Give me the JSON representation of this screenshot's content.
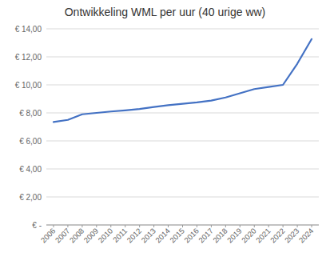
{
  "chart_data": {
    "type": "line",
    "title": "Ontwikkeling WML per uur (40 urige ww)",
    "x": [
      2006,
      2007,
      2008,
      2009,
      2010,
      2011,
      2012,
      2013,
      2014,
      2015,
      2016,
      2017,
      2018,
      2019,
      2020,
      2021,
      2022,
      2023,
      2024
    ],
    "values": [
      7.35,
      7.5,
      7.9,
      8.0,
      8.1,
      8.18,
      8.28,
      8.42,
      8.55,
      8.65,
      8.75,
      8.88,
      9.1,
      9.4,
      9.7,
      9.85,
      10.0,
      11.51,
      13.27
    ],
    "color": "#4472C4",
    "xlim": [
      2005.5,
      2024.5
    ],
    "xticks": [
      2006,
      2007,
      2008,
      2009,
      2010,
      2011,
      2012,
      2013,
      2014,
      2015,
      2016,
      2017,
      2018,
      2019,
      2020,
      2021,
      2022,
      2023,
      2024
    ],
    "ylim": [
      0,
      14
    ],
    "yticks": [
      {
        "value": 0,
        "label": "€ -"
      },
      {
        "value": 2,
        "label": "€ 2,00"
      },
      {
        "value": 4,
        "label": "€ 4,00"
      },
      {
        "value": 6,
        "label": "€ 6,00"
      },
      {
        "value": 8,
        "label": "€ 8,00"
      },
      {
        "value": 10,
        "label": "€ 10,00"
      },
      {
        "value": 12,
        "label": "€ 12,00"
      },
      {
        "value": 14,
        "label": "€ 14,00"
      }
    ],
    "grid": true
  }
}
